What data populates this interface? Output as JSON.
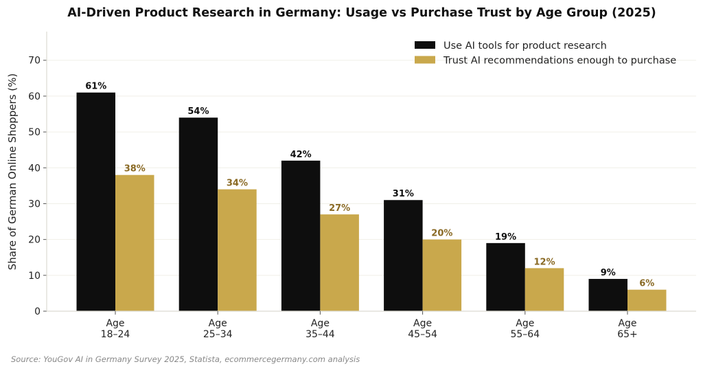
{
  "chart_data": {
    "type": "bar",
    "title": "AI-Driven Product Research in Germany: Usage vs Purchase Trust by Age Group (2025)",
    "xlabel": "",
    "ylabel": "Share of German Online Shoppers (%)",
    "ylim": [
      0,
      78
    ],
    "yticks": [
      0,
      10,
      20,
      30,
      40,
      50,
      60,
      70
    ],
    "grid": true,
    "legend_position": "top-right",
    "categories": [
      [
        "Age",
        "18–24"
      ],
      [
        "Age",
        "25–34"
      ],
      [
        "Age",
        "35–44"
      ],
      [
        "Age",
        "45–54"
      ],
      [
        "Age",
        "55–64"
      ],
      [
        "Age",
        "65+"
      ]
    ],
    "series": [
      {
        "name": "Use AI tools for product research",
        "color": "#0e0e0e",
        "label_color": "#111111",
        "values": [
          61,
          54,
          42,
          31,
          19,
          9
        ],
        "labels": [
          "61%",
          "54%",
          "42%",
          "31%",
          "19%",
          "9%"
        ]
      },
      {
        "name": "Trust AI recommendations enough to purchase",
        "color": "#c9a84c",
        "label_color": "#8a6a25",
        "values": [
          38,
          34,
          27,
          20,
          12,
          6
        ],
        "labels": [
          "38%",
          "34%",
          "27%",
          "20%",
          "12%",
          "6%"
        ]
      }
    ],
    "source": "Source: YouGov AI in Germany Survey 2025, Statista, ecommercegermany.com analysis"
  }
}
